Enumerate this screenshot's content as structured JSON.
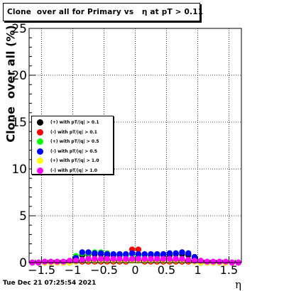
{
  "title": "Clone  over all for Primary vs   η at pT > 0.11",
  "timestamp": "Tue Dec 21 07:25:54 2021",
  "chart_data": {
    "type": "scatter",
    "title": "Clone  over all for Primary vs   η at pT > 0.11",
    "xlabel": "η",
    "ylabel": "Clone  over all (%)",
    "xlim": [
      -1.7,
      1.7
    ],
    "ylim": [
      0,
      25
    ],
    "xticks": [
      -1.5,
      -1,
      -0.5,
      0,
      0.5,
      1,
      1.5
    ],
    "xtick_labels": [
      "−1.5",
      "−1",
      "−0.5",
      "0",
      "0.5",
      "1",
      "1.5"
    ],
    "yticks": [
      0,
      5,
      10,
      15,
      20,
      25
    ],
    "ytick_labels": [
      "0",
      "5",
      "10",
      "15",
      "20",
      "25"
    ],
    "grid": true,
    "legend_position": "left-middle",
    "x": [
      -1.65,
      -1.55,
      -1.45,
      -1.35,
      -1.25,
      -1.15,
      -1.05,
      -0.95,
      -0.85,
      -0.75,
      -0.65,
      -0.55,
      -0.45,
      -0.35,
      -0.25,
      -0.15,
      -0.05,
      0.05,
      0.15,
      0.25,
      0.35,
      0.45,
      0.55,
      0.65,
      0.75,
      0.85,
      0.95,
      1.05,
      1.15,
      1.25,
      1.35,
      1.45,
      1.55,
      1.65
    ],
    "series": [
      {
        "name": "(+) with pT/|q| > 0.1",
        "color": "#000000",
        "values": [
          0,
          0,
          0,
          0,
          0,
          0,
          0,
          0.6,
          0.8,
          0.9,
          0.9,
          0.9,
          0.8,
          0.8,
          0.8,
          0.8,
          0.9,
          0.8,
          0.8,
          0.8,
          0.8,
          0.8,
          0.8,
          0.9,
          0.9,
          0.8,
          0.5,
          0,
          0,
          0,
          0,
          0,
          0,
          0
        ]
      },
      {
        "name": "(-) with pT/|q| > 0.1",
        "color": "#ff0000",
        "values": [
          0,
          0,
          0,
          0,
          0,
          0,
          0,
          0.1,
          0.1,
          0.1,
          0.1,
          0.1,
          0.1,
          0.1,
          0.1,
          0.1,
          1.4,
          1.4,
          0.1,
          0.1,
          0.1,
          0.1,
          0.1,
          0.1,
          0.1,
          0.1,
          0.1,
          0,
          0,
          0,
          0,
          0,
          0,
          0
        ]
      },
      {
        "name": "(+) with pT/|q| > 0.5",
        "color": "#00ff00",
        "values": [
          0,
          0,
          0,
          0,
          0,
          0,
          0,
          0.7,
          1.0,
          1.0,
          1.1,
          1.1,
          1.0,
          0.9,
          0.9,
          0.8,
          0.9,
          0.8,
          0.8,
          0.9,
          0.9,
          0.9,
          1.0,
          1.0,
          1.1,
          1.0,
          0.6,
          0,
          0,
          0,
          0,
          0,
          0,
          0
        ]
      },
      {
        "name": "(-) with pT/|q| > 0.5",
        "color": "#0000ff",
        "values": [
          0,
          0,
          0,
          0,
          0,
          0,
          0,
          0.5,
          1.1,
          1.1,
          1.0,
          1.0,
          0.9,
          0.9,
          0.9,
          0.9,
          1.0,
          0.9,
          0.9,
          0.9,
          0.9,
          0.9,
          1.0,
          1.0,
          1.1,
          1.0,
          0.6,
          0,
          0,
          0,
          0,
          0,
          0,
          0
        ]
      },
      {
        "name": "(+) with pT/|q| > 1.0",
        "color": "#ffff00",
        "values": [
          0,
          0,
          0,
          0,
          0,
          0,
          0,
          0.1,
          0.2,
          0.2,
          0.2,
          0.2,
          0.2,
          0.2,
          0.2,
          0.2,
          0.2,
          0.2,
          0.2,
          0.2,
          0.2,
          0.2,
          0.2,
          0.2,
          0.2,
          0.2,
          0.1,
          0,
          0,
          0,
          0,
          0,
          0,
          0
        ]
      },
      {
        "name": "(-) with pT/|q| > 1.0",
        "color": "#ff00ff",
        "values": [
          0,
          0,
          0.1,
          0.1,
          0.1,
          0.1,
          0.2,
          0.2,
          0.3,
          0.4,
          0.4,
          0.4,
          0.4,
          0.4,
          0.4,
          0.4,
          0.4,
          0.4,
          0.4,
          0.4,
          0.4,
          0.4,
          0.4,
          0.4,
          0.4,
          0.3,
          0.2,
          0.2,
          0.1,
          0.1,
          0.1,
          0.1,
          0,
          0
        ]
      }
    ]
  }
}
